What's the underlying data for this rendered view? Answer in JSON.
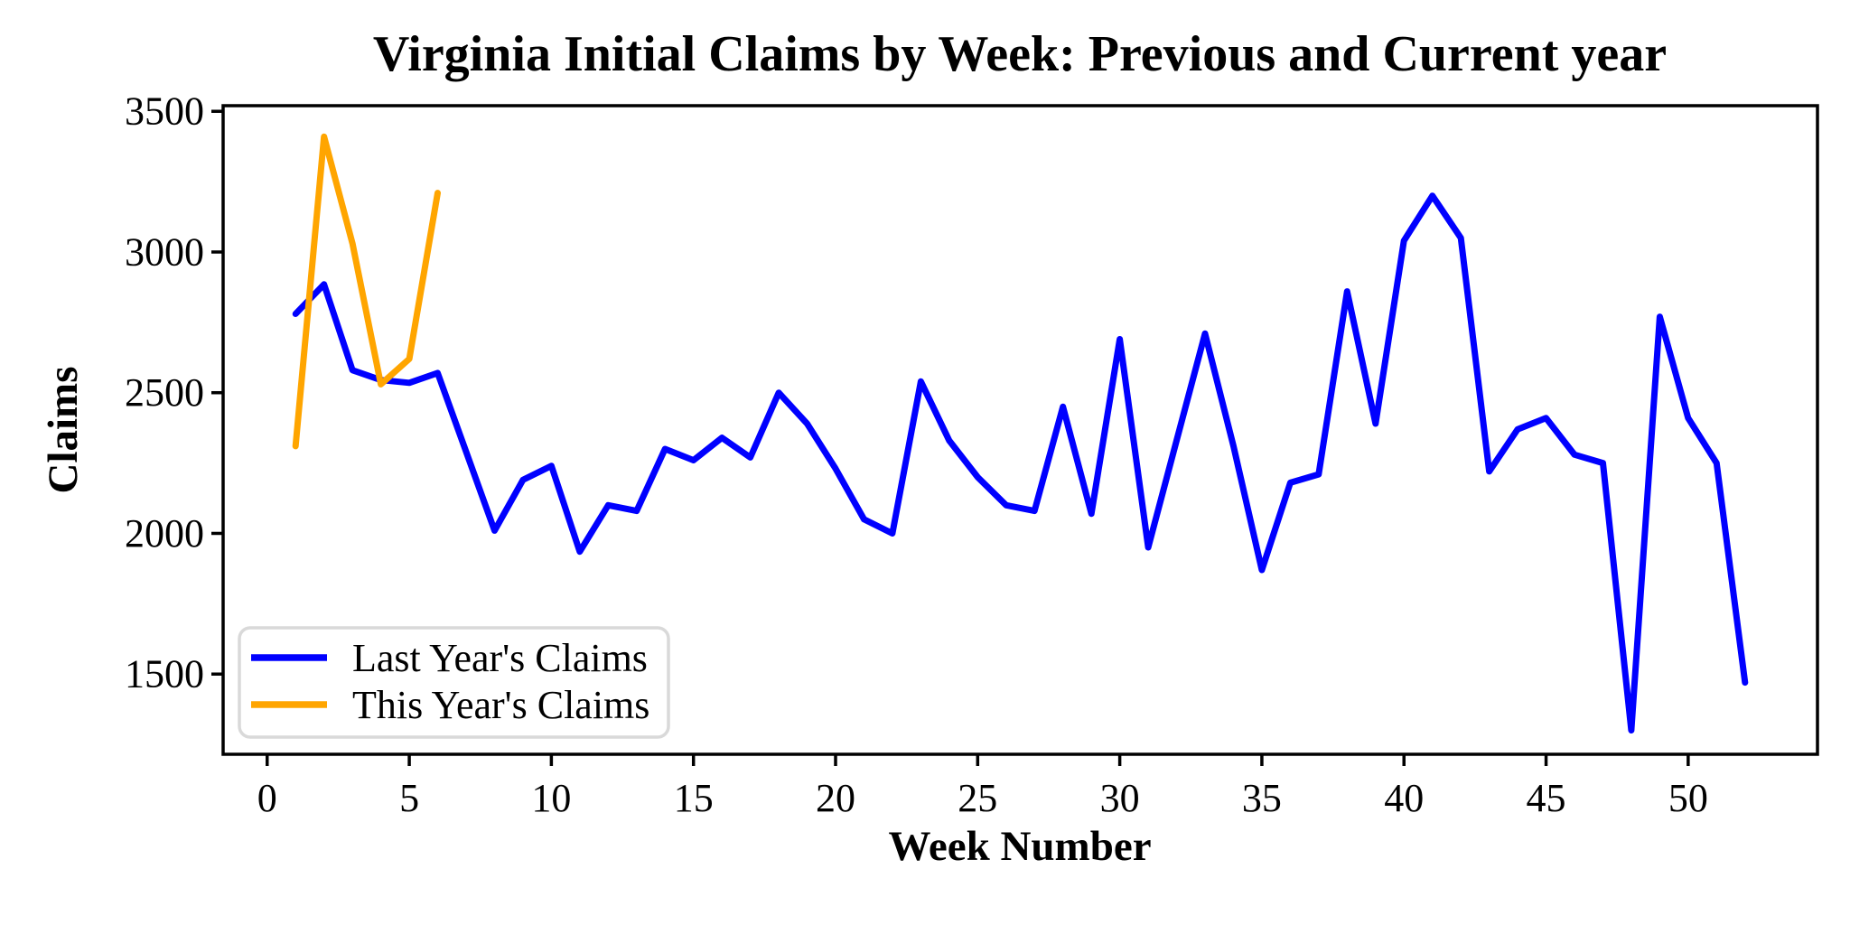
{
  "figure": {
    "title": "Virginia Initial Claims by Week: Previous and Current year"
  },
  "chart_data": {
    "type": "line",
    "title": "Virginia Initial Claims by Week: Previous and Current year",
    "xlabel": "Week Number",
    "ylabel": "Claims",
    "x_ticks": [
      0,
      5,
      10,
      15,
      20,
      25,
      30,
      35,
      40,
      45,
      50
    ],
    "y_ticks": [
      1500,
      2000,
      2500,
      3000,
      3500
    ],
    "xlim": [
      -1.55,
      54.55
    ],
    "ylim": [
      1215,
      3520
    ],
    "grid": false,
    "frame": "full-box",
    "axis_color": "#000000",
    "background_color": "#ffffff",
    "legend": {
      "position": "lower left",
      "border_color": "#d9d9d9",
      "fill_color": "#ffffff"
    },
    "series": [
      {
        "name": "Last Year's Claims",
        "color": "#0000ff",
        "x": [
          1,
          2,
          3,
          4,
          5,
          6,
          7,
          8,
          9,
          10,
          11,
          12,
          13,
          14,
          15,
          16,
          17,
          18,
          19,
          20,
          21,
          22,
          23,
          24,
          25,
          26,
          27,
          28,
          29,
          30,
          31,
          32,
          33,
          34,
          35,
          36,
          37,
          38,
          39,
          40,
          41,
          42,
          43,
          44,
          45,
          46,
          47,
          48,
          49,
          50,
          51,
          52
        ],
        "values": [
          2780,
          2885,
          2580,
          2545,
          2535,
          2570,
          2290,
          2010,
          2190,
          2240,
          1935,
          2100,
          2080,
          2300,
          2260,
          2340,
          2270,
          2500,
          2390,
          2230,
          2050,
          2000,
          2540,
          2330,
          2200,
          2100,
          2080,
          2450,
          2070,
          2690,
          1950,
          2330,
          2710,
          2310,
          1870,
          2180,
          2210,
          2860,
          2390,
          3040,
          3200,
          3050,
          2220,
          2370,
          2410,
          2280,
          2250,
          1300,
          2770,
          2410,
          2250,
          1470
        ]
      },
      {
        "name": "This Year's Claims",
        "color": "#ffa500",
        "x": [
          1,
          2,
          3,
          4,
          5,
          6
        ],
        "values": [
          2310,
          3410,
          3030,
          2530,
          2620,
          3210
        ]
      }
    ]
  }
}
